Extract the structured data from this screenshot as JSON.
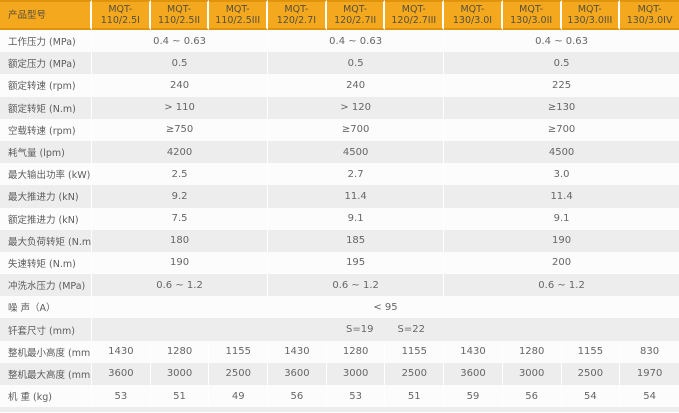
{
  "table": {
    "corner_label": "产品型号",
    "models": [
      {
        "line1": "MQT-",
        "line2": "110/2.5I"
      },
      {
        "line1": "MQT-",
        "line2": "110/2.5II"
      },
      {
        "line1": "MQT-",
        "line2": "110/2.5III"
      },
      {
        "line1": "MQT-",
        "line2": "120/2.7I"
      },
      {
        "line1": "MQT-",
        "line2": "120/2.7II"
      },
      {
        "line1": "MQT-",
        "line2": "120/2.7III"
      },
      {
        "line1": "MQT-",
        "line2": "130/3.0I"
      },
      {
        "line1": "MQT-",
        "line2": "130/3.0II"
      },
      {
        "line1": "MQT-",
        "line2": "130/3.0III"
      },
      {
        "line1": "MQT-",
        "line2": "130/3.0IV"
      }
    ],
    "group_spans": [
      3,
      3,
      4
    ],
    "rows": [
      {
        "label": "工作压力 (MPa)",
        "span": "group",
        "values": [
          "0.4 ~ 0.63",
          "0.4 ~ 0.63",
          "0.4 ~ 0.63"
        ]
      },
      {
        "label": "额定压力 (MPa)",
        "span": "group",
        "values": [
          "0.5",
          "0.5",
          "0.5"
        ]
      },
      {
        "label": "额定转速 (rpm)",
        "span": "group",
        "values": [
          "240",
          "240",
          "225"
        ]
      },
      {
        "label": "额定转矩 (N.m)",
        "span": "group",
        "values": [
          "> 110",
          "> 120",
          "≥130"
        ]
      },
      {
        "label": "空载转速 (rpm)",
        "span": "group",
        "values": [
          "≥750",
          "≥700",
          "≥700"
        ]
      },
      {
        "label": "耗气量 (lpm)",
        "span": "group",
        "values": [
          "4200",
          "4500",
          "4500"
        ]
      },
      {
        "label": "最大输出功率 (kW)",
        "span": "group",
        "values": [
          "2.5",
          "2.7",
          "3.0"
        ]
      },
      {
        "label": "最大推进力 (kN)",
        "span": "group",
        "values": [
          "9.2",
          "11.4",
          "11.4"
        ]
      },
      {
        "label": "额定推进力 (kN)",
        "span": "group",
        "values": [
          "7.5",
          "9.1",
          "9.1"
        ]
      },
      {
        "label": "最大负荷转矩 (N.m)",
        "span": "group",
        "values": [
          "180",
          "185",
          "190"
        ]
      },
      {
        "label": "失速转矩 (N.m)",
        "span": "group",
        "values": [
          "190",
          "195",
          "200"
        ]
      },
      {
        "label": "冲洗水压力 (MPa)",
        "span": "group",
        "values": [
          "0.6 ~ 1.2",
          "0.6 ~ 1.2",
          "0.6 ~ 1.2"
        ]
      },
      {
        "label": "噪 声（A）",
        "span": "full",
        "values": [
          "< 95"
        ]
      },
      {
        "label": "钎套尺寸 (mm)",
        "span": "pair",
        "values": [
          "S=19",
          "S=22"
        ]
      },
      {
        "label": "整机最小高度 (mm)",
        "span": "each",
        "values": [
          "1430",
          "1280",
          "1155",
          "1430",
          "1280",
          "1155",
          "1430",
          "1280",
          "1155",
          "830"
        ]
      },
      {
        "label": "整机最大高度 (mm)",
        "span": "each",
        "values": [
          "3600",
          "3000",
          "2500",
          "3600",
          "3000",
          "2500",
          "3600",
          "3000",
          "2500",
          "1970"
        ]
      },
      {
        "label": "机 重 (kg)",
        "span": "each",
        "values": [
          "53",
          "51",
          "49",
          "56",
          "53",
          "51",
          "59",
          "56",
          "54",
          "54"
        ]
      }
    ],
    "colors": {
      "header_bg": "#F4A81D",
      "header_rule": "#E0940C",
      "header_text": "#56503F",
      "row_alt_bg": "#EDEDED",
      "row_bg": "#FCFCFC",
      "body_text": "#666666",
      "separator": "#FFFFFF"
    }
  }
}
